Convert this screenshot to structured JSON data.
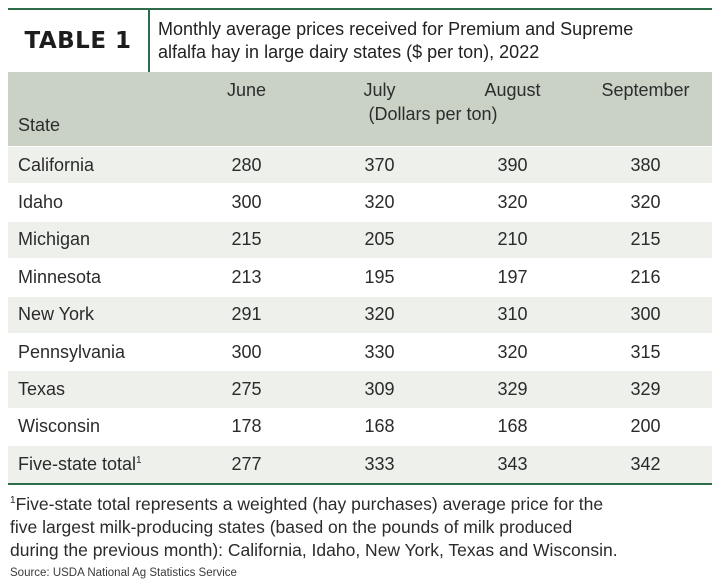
{
  "title": {
    "label": "TABLE 1",
    "caption_line1": "Monthly average prices received for Premium and Supreme",
    "caption_line2": "alfalfa hay in large dairy states ($ per ton), 2022"
  },
  "table": {
    "state_header": "State",
    "month_headers": [
      "June",
      "July",
      "August",
      "September"
    ],
    "units": "(Dollars per ton)",
    "rows": [
      {
        "state": "California",
        "values": [
          "280",
          "370",
          "390",
          "380"
        ]
      },
      {
        "state": "Idaho",
        "values": [
          "300",
          "320",
          "320",
          "320"
        ]
      },
      {
        "state": "Michigan",
        "values": [
          "215",
          "205",
          "210",
          "215"
        ]
      },
      {
        "state": "Minnesota",
        "values": [
          "213",
          "195",
          "197",
          "216"
        ]
      },
      {
        "state": "New York",
        "values": [
          "291",
          "320",
          "310",
          "300"
        ]
      },
      {
        "state": "Pennsylvania",
        "values": [
          "300",
          "330",
          "320",
          "315"
        ]
      },
      {
        "state": "Texas",
        "values": [
          "275",
          "309",
          "329",
          "329"
        ]
      },
      {
        "state": "Wisconsin",
        "values": [
          "178",
          "168",
          "168",
          "200"
        ]
      },
      {
        "state": "Five-state total",
        "sup": "1",
        "values": [
          "277",
          "333",
          "343",
          "342"
        ]
      }
    ]
  },
  "footnote": {
    "marker": "1",
    "line1": "Five-state total represents a weighted (hay purchases) average price for the",
    "line2": "five largest milk-producing states (based on the pounds of milk produced",
    "line3": "during the previous month): California, Idaho, New York, Texas and Wisconsin."
  },
  "source": "Source: USDA National Ag Statistics Service",
  "colors": {
    "accent": "#2e6b4a",
    "header_bg": "#c9d2c5",
    "stripe_bg": "#eef0ec"
  }
}
